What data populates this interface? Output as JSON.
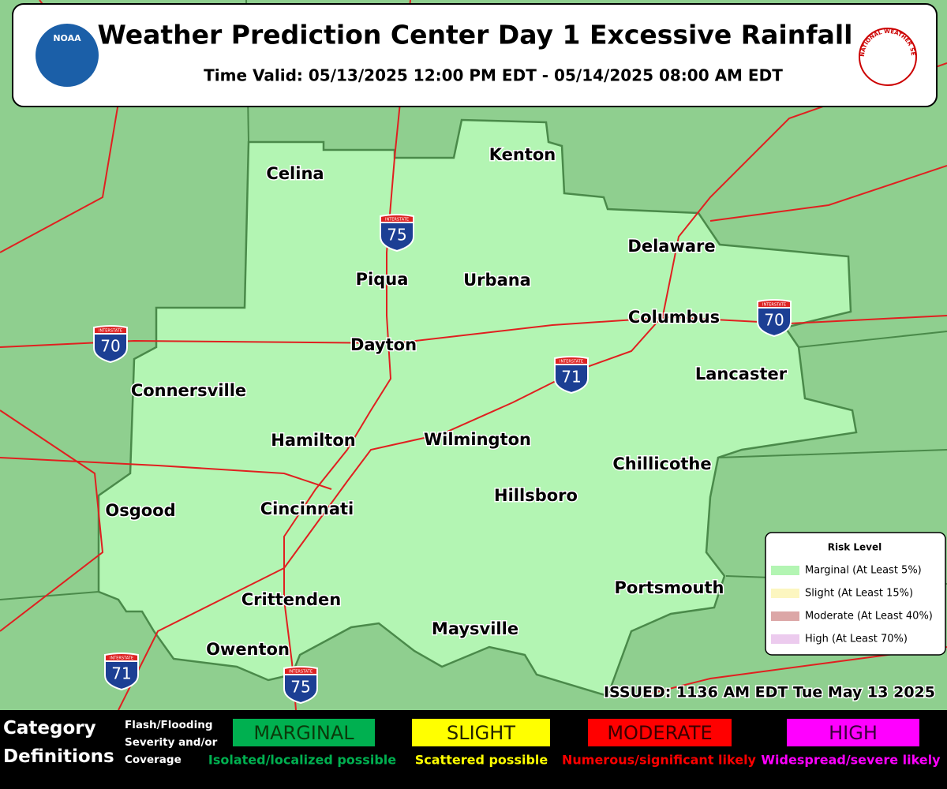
{
  "header": {
    "title": "Weather Prediction Center Day 1 Excessive Rainfall",
    "time_valid": "Time Valid: 05/13/2025 12:00 PM EDT - 05/14/2025 08:00 AM EDT",
    "noaa_logo": "NOAA",
    "nws_logo": "NATIONAL WEATHER SERVICE"
  },
  "map": {
    "cities": [
      "Kenton",
      "Celina",
      "Delaware",
      "Piqua",
      "Urbana",
      "Columbus",
      "Dayton",
      "Lancaster",
      "Connersville",
      "Hamilton",
      "Wilmington",
      "Chillicothe",
      "Hillsboro",
      "Osgood",
      "Cincinnati",
      "Portsmouth",
      "Crittenden",
      "Maysville",
      "Owenton"
    ],
    "shield_header": "INTERSTATE",
    "shields": [
      "75",
      "70",
      "70",
      "71",
      "71",
      "75"
    ],
    "issued": "ISSUED: 1136 AM EDT Tue May 13 2025"
  },
  "legend": {
    "title": "Risk Level",
    "items": [
      {
        "label": "Marginal (At Least 5%)",
        "color": "#b3f5b3"
      },
      {
        "label": "Slight (At Least 15%)",
        "color": "#fcf6c0"
      },
      {
        "label": "Moderate (At Least 40%)",
        "color": "#dca7a7"
      },
      {
        "label": "High (At Least 70%)",
        "color": "#eccbee"
      }
    ]
  },
  "footer": {
    "heading": "Category Definitions",
    "note": "Flash/Flooding Severity and/or Coverage",
    "categories": [
      {
        "name": "MARGINAL",
        "description": "Isolated/localized possible",
        "color": "#00b050",
        "text_color": "#0a3a0a"
      },
      {
        "name": "SLIGHT",
        "description": "Scattered possible",
        "color": "#ffff00",
        "text_color": "#222200"
      },
      {
        "name": "MODERATE",
        "description": "Numerous/significant likely",
        "color": "#ff0000",
        "text_color": "#3a0000"
      },
      {
        "name": "HIGH",
        "description": "Widespread/severe likely",
        "color": "#ff00ff",
        "text_color": "#3a003a"
      }
    ]
  }
}
